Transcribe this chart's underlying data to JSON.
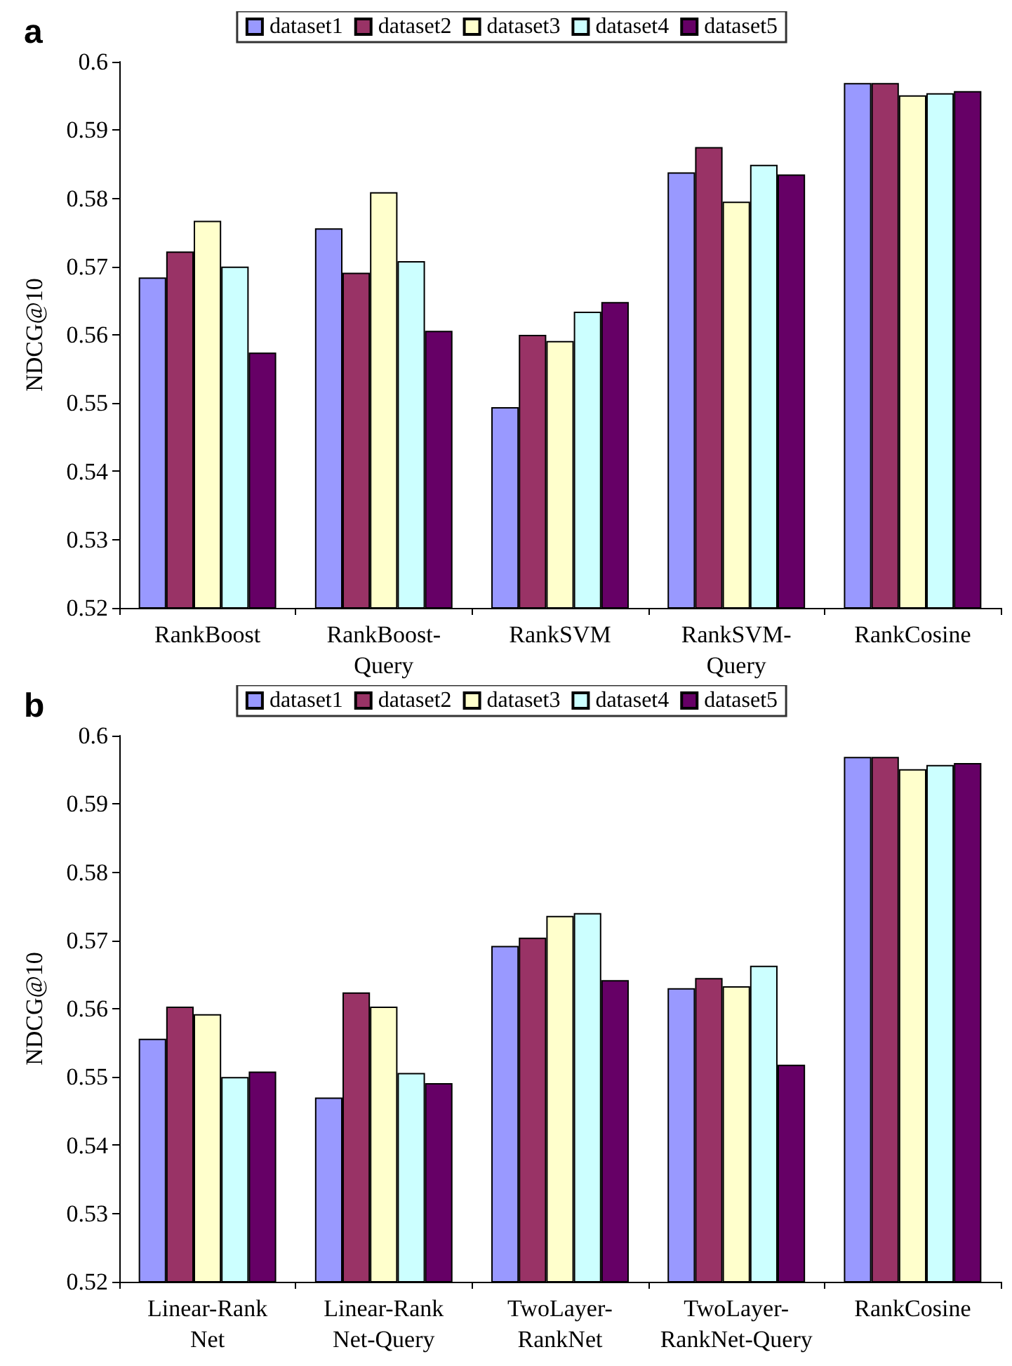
{
  "chart_data": [
    {
      "type": "bar",
      "title": "a",
      "ylabel": "NDCG@10",
      "categories": [
        "RankBoost",
        "RankBoost-\nQuery",
        "RankSVM",
        "RankSVM-\nQuery",
        "RankCosine"
      ],
      "series": [
        {
          "name": "dataset1",
          "color": "#9999ff",
          "values": [
            0.5684,
            0.5756,
            0.5494,
            0.5838,
            0.5969
          ]
        },
        {
          "name": "dataset2",
          "color": "#993366",
          "values": [
            0.5722,
            0.5691,
            0.56,
            0.5875,
            0.5969
          ]
        },
        {
          "name": "dataset3",
          "color": "#ffffcc",
          "values": [
            0.5767,
            0.5809,
            0.5591,
            0.5795,
            0.5951
          ]
        },
        {
          "name": "dataset4",
          "color": "#ccffff",
          "values": [
            0.57,
            0.5708,
            0.5634,
            0.5849,
            0.5954
          ]
        },
        {
          "name": "dataset5",
          "color": "#660066",
          "values": [
            0.5574,
            0.5606,
            0.5648,
            0.5835,
            0.5957
          ]
        }
      ],
      "ylim": [
        0.52,
        0.6
      ],
      "yticks": [
        0.52,
        0.53,
        0.54,
        0.55,
        0.56,
        0.57,
        0.58,
        0.59,
        0.6
      ],
      "grid": false,
      "legend": "top"
    },
    {
      "type": "bar",
      "title": "b",
      "ylabel": "NDCG@10",
      "categories": [
        "Linear-Rank\nNet",
        "Linear-Rank\nNet-Query",
        "TwoLayer-\nRankNet",
        "TwoLayer-\nRankNet-Query",
        "RankCosine"
      ],
      "series": [
        {
          "name": "dataset1",
          "color": "#9999ff",
          "values": [
            0.5556,
            0.547,
            0.5692,
            0.563,
            0.5969
          ]
        },
        {
          "name": "dataset2",
          "color": "#993366",
          "values": [
            0.5603,
            0.5624,
            0.5704,
            0.5645,
            0.5969
          ]
        },
        {
          "name": "dataset3",
          "color": "#ffffcc",
          "values": [
            0.5592,
            0.5603,
            0.5736,
            0.5633,
            0.5951
          ]
        },
        {
          "name": "dataset4",
          "color": "#ccffff",
          "values": [
            0.55,
            0.5506,
            0.574,
            0.5663,
            0.5957
          ]
        },
        {
          "name": "dataset5",
          "color": "#660066",
          "values": [
            0.5508,
            0.5491,
            0.5642,
            0.5518,
            0.596
          ]
        }
      ],
      "ylim": [
        0.52,
        0.6
      ],
      "yticks": [
        0.52,
        0.53,
        0.54,
        0.55,
        0.56,
        0.57,
        0.58,
        0.59,
        0.6
      ],
      "grid": false,
      "legend": "top"
    }
  ]
}
